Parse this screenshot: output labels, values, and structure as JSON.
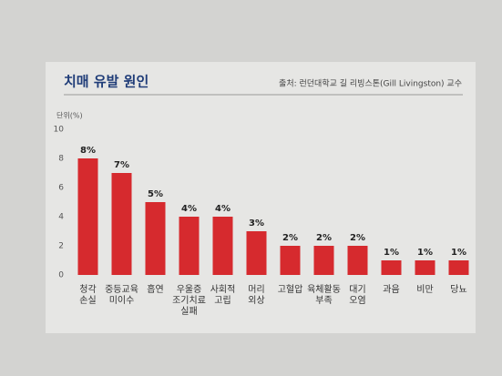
{
  "chart_data": {
    "type": "bar",
    "title": "치매 유발 원인",
    "source": "출처: 런던대학교 길 리빙스톤(Gill Livingston) 교수",
    "y_label": "단위(%)",
    "categories": [
      [
        "청각",
        "손실"
      ],
      [
        "중등교육",
        "미이수"
      ],
      [
        "흡연"
      ],
      [
        "우울증",
        "조기치료",
        "실패"
      ],
      [
        "사회적",
        "고립"
      ],
      [
        "머리",
        "외상"
      ],
      [
        "고혈압"
      ],
      [
        "육체활동",
        "부족"
      ],
      [
        "대기",
        "오염"
      ],
      [
        "과음"
      ],
      [
        "비만"
      ],
      [
        "당뇨"
      ]
    ],
    "values": [
      8,
      7,
      5,
      4,
      4,
      3,
      2,
      2,
      2,
      1,
      1,
      1
    ],
    "value_labels": [
      "8%",
      "7%",
      "5%",
      "4%",
      "4%",
      "3%",
      "2%",
      "2%",
      "2%",
      "1%",
      "1%",
      "1%"
    ],
    "color": "#d62a2e",
    "ylim": [
      0,
      10
    ],
    "yticks": [
      0,
      2,
      4,
      6,
      8,
      10
    ],
    "grid": false
  }
}
